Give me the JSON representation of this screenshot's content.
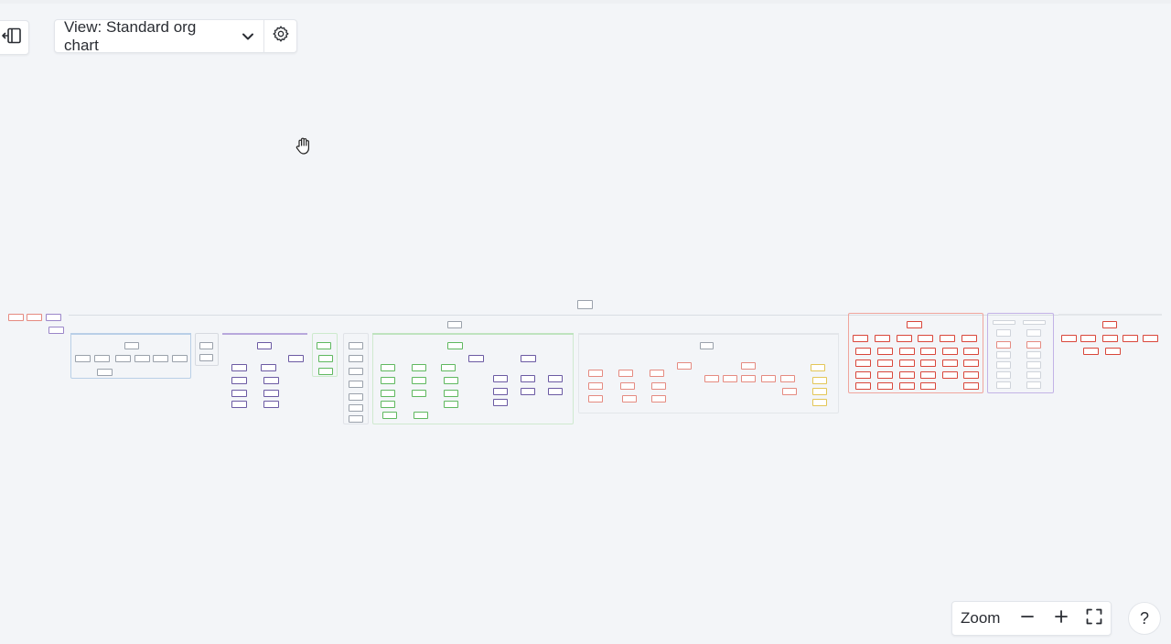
{
  "toolbar": {
    "view_label": "View: Standard org chart",
    "sidebar_toggle_icon": "sidebar-collapse-icon",
    "settings_icon": "gear-icon",
    "dropdown_icon": "chevron-down-icon"
  },
  "zoom": {
    "label": "Zoom",
    "minus": "−",
    "plus": "+",
    "fit_icon": "fullscreen-icon"
  },
  "help": {
    "label": "?"
  },
  "colors": {
    "background": "#f3f5f8",
    "blue_group": "#8fb3d9",
    "purple_group": "#9b86c9",
    "green_group": "#8fd18f",
    "red_group": "#e58a80",
    "yellow_group": "#e3c657"
  }
}
